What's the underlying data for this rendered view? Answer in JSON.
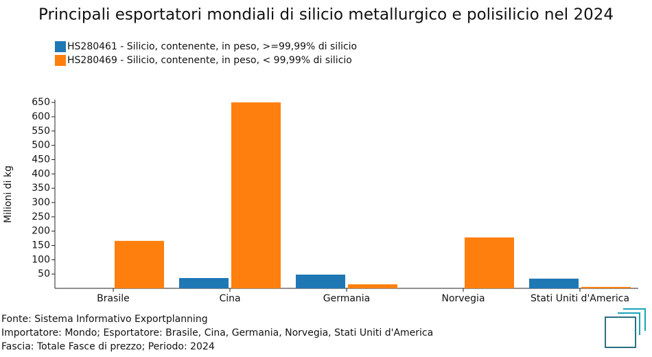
{
  "chart_data": {
    "type": "bar",
    "title": "Principali esportatori mondiali di silicio metallurgico e polisilicio nel 2024",
    "y_label": "Milioni di kg",
    "categories": [
      "Brasile",
      "Cina",
      "Germania",
      "Norvegia",
      "Stati Uniti d'America"
    ],
    "series": [
      {
        "name": "HS280461 - Silicio, contenente, in peso, >=99,99% di silicio",
        "color": "#1f77b4",
        "values": [
          0,
          36,
          48,
          0,
          34
        ]
      },
      {
        "name": "HS280469 - Silicio, contenente, in peso, < 99,99% di silicio",
        "color": "#ff7f0e",
        "values": [
          166,
          650,
          14,
          178,
          5
        ]
      }
    ],
    "ylim": [
      0,
      660
    ],
    "yticks": [
      50,
      100,
      150,
      200,
      250,
      300,
      350,
      400,
      450,
      500,
      550,
      600,
      650
    ],
    "footnotes": [
      "Fonte: Sistema Informativo Exportplanning",
      "Importatore: Mondo; Esportatore: Brasile, Cina, Germania, Norvegia, Stati Uniti d'America",
      "Fascia: Totale Fasce di prezzo; Periodo: 2024"
    ]
  }
}
